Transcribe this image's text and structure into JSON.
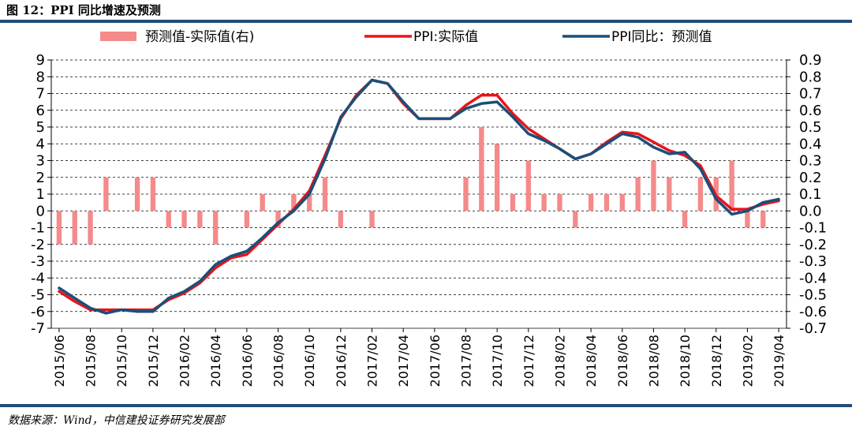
{
  "header": {
    "title": "图 12：PPI 同比增速及预测"
  },
  "footer": {
    "source": "数据来源：Wind，中信建投证券研究发展部"
  },
  "colors": {
    "bar": "#f48a8a",
    "actual": "#e8141b",
    "forecast": "#1a4f7a",
    "rule": "#1f4e79"
  },
  "chart_data": {
    "type": "line",
    "x": [
      "2015/06",
      "2015/07",
      "2015/08",
      "2015/09",
      "2015/10",
      "2015/11",
      "2015/12",
      "2016/01",
      "2016/02",
      "2016/03",
      "2016/04",
      "2016/05",
      "2016/06",
      "2016/07",
      "2016/08",
      "2016/09",
      "2016/10",
      "2016/11",
      "2016/12",
      "2017/01",
      "2017/02",
      "2017/03",
      "2017/04",
      "2017/05",
      "2017/06",
      "2017/07",
      "2017/08",
      "2017/09",
      "2017/10",
      "2017/11",
      "2017/12",
      "2018/01",
      "2018/02",
      "2018/03",
      "2018/04",
      "2018/05",
      "2018/06",
      "2018/07",
      "2018/08",
      "2018/09",
      "2018/10",
      "2018/11",
      "2018/12",
      "2019/01",
      "2019/02",
      "2019/03",
      "2019/04"
    ],
    "x_tick_labels": [
      "2015/06",
      "2015/08",
      "2015/10",
      "2015/12",
      "2016/02",
      "2016/04",
      "2016/06",
      "2016/08",
      "2016/10",
      "2016/12",
      "2017/02",
      "2017/04",
      "2017/06",
      "2017/08",
      "2017/10",
      "2017/12",
      "2018/02",
      "2018/04",
      "2018/06",
      "2018/08",
      "2018/10",
      "2018/12",
      "2019/02",
      "2019/04"
    ],
    "y_left": {
      "lim": [
        -7,
        9
      ],
      "ticks": [
        "9",
        "8",
        "7",
        "6",
        "5",
        "4",
        "3",
        "2",
        "1",
        "0",
        "-1",
        "-2",
        "-3",
        "-4",
        "-5",
        "-6",
        "-7"
      ]
    },
    "y_right": {
      "lim": [
        -0.7,
        0.9
      ],
      "ticks": [
        "0.9",
        "0.8",
        "0.7",
        "0.6",
        "0.5",
        "0.4",
        "0.3",
        "0.2",
        "0.1",
        "0.0",
        "-0.1",
        "-0.2",
        "-0.3",
        "-0.4",
        "-0.5",
        "-0.6",
        "-0.7"
      ]
    },
    "grid": "horizontal-dashed",
    "legend_position": "top",
    "series": [
      {
        "name": "预测值-实际值(右)",
        "type": "bar",
        "axis": "right",
        "values": [
          -0.2,
          -0.2,
          -0.2,
          0.2,
          null,
          0.2,
          0.2,
          -0.1,
          -0.1,
          -0.1,
          -0.2,
          null,
          -0.1,
          0.1,
          -0.1,
          0.1,
          0.1,
          0.2,
          -0.1,
          null,
          -0.1,
          null,
          null,
          null,
          null,
          null,
          0.2,
          0.5,
          0.4,
          0.1,
          0.3,
          0.1,
          0.1,
          -0.1,
          0.1,
          0.1,
          0.1,
          0.2,
          0.3,
          0.2,
          -0.1,
          0.2,
          0.2,
          0.3,
          -0.1,
          -0.1,
          null
        ]
      },
      {
        "name": "PPI:实际值",
        "type": "line",
        "axis": "left",
        "values": [
          -4.8,
          -5.4,
          -5.9,
          -5.9,
          -5.9,
          -5.9,
          -5.9,
          -5.3,
          -4.9,
          -4.3,
          -3.4,
          -2.8,
          -2.6,
          -1.7,
          -0.8,
          0.1,
          1.2,
          3.3,
          5.5,
          6.9,
          7.8,
          7.6,
          6.4,
          5.5,
          5.5,
          5.5,
          6.3,
          6.9,
          6.9,
          5.8,
          4.9,
          4.3,
          3.7,
          3.1,
          3.4,
          4.1,
          4.7,
          4.6,
          4.1,
          3.6,
          3.3,
          2.7,
          0.9,
          0.1,
          0.1,
          0.4,
          0.6
        ]
      },
      {
        "name": "PPI同比：预测值",
        "type": "line",
        "axis": "left",
        "values": [
          -4.6,
          -5.2,
          -5.8,
          -6.1,
          -5.9,
          -6.0,
          -6.0,
          -5.2,
          -4.8,
          -4.2,
          -3.2,
          -2.7,
          -2.4,
          -1.6,
          -0.7,
          0.0,
          1.0,
          3.1,
          5.6,
          6.8,
          7.8,
          7.6,
          6.5,
          5.5,
          5.5,
          5.5,
          6.1,
          6.4,
          6.5,
          5.6,
          4.6,
          4.2,
          3.7,
          3.1,
          3.4,
          4.0,
          4.6,
          4.4,
          3.8,
          3.4,
          3.5,
          2.5,
          0.7,
          -0.2,
          0.0,
          0.5,
          0.7
        ]
      }
    ]
  }
}
